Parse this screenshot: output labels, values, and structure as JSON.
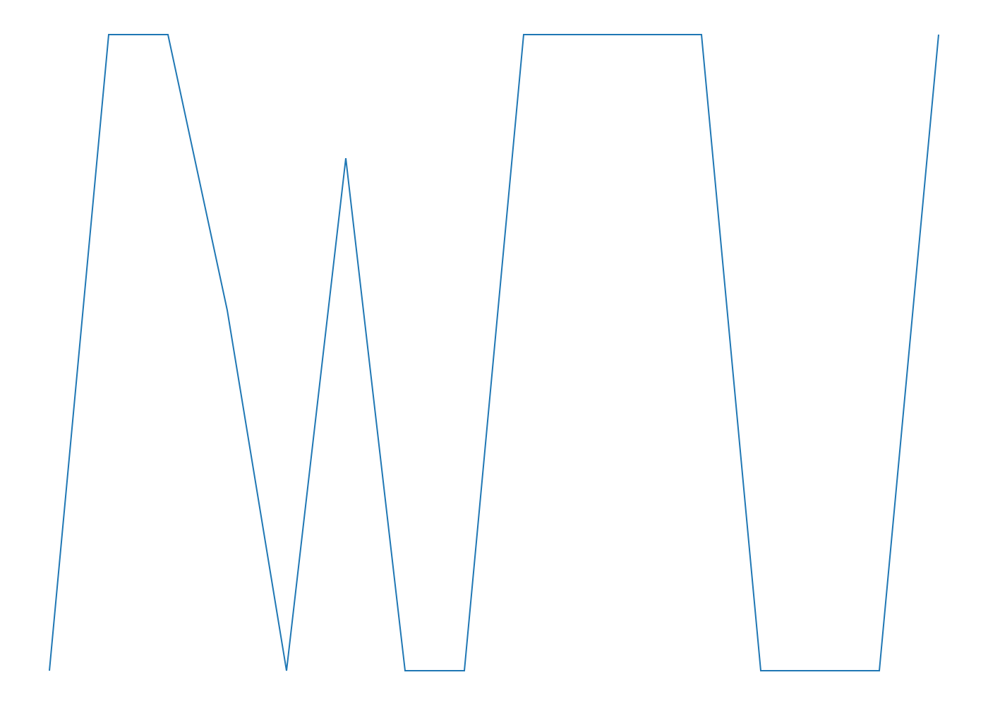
{
  "chart_data": {
    "type": "line",
    "x": [
      0,
      1,
      2,
      3,
      4,
      5,
      6,
      7,
      8,
      9,
      10,
      11,
      12,
      13,
      14,
      15
    ],
    "series": [
      {
        "values": [
          0,
          1,
          1,
          0.5667,
          0,
          0.8056,
          0,
          0,
          1,
          1,
          1,
          1,
          0,
          0,
          0,
          1
        ],
        "color": "#1f77b4"
      }
    ],
    "xlim": [
      0,
      15
    ],
    "ylim": [
      0,
      1
    ],
    "axes_visible": false,
    "grid": false
  }
}
